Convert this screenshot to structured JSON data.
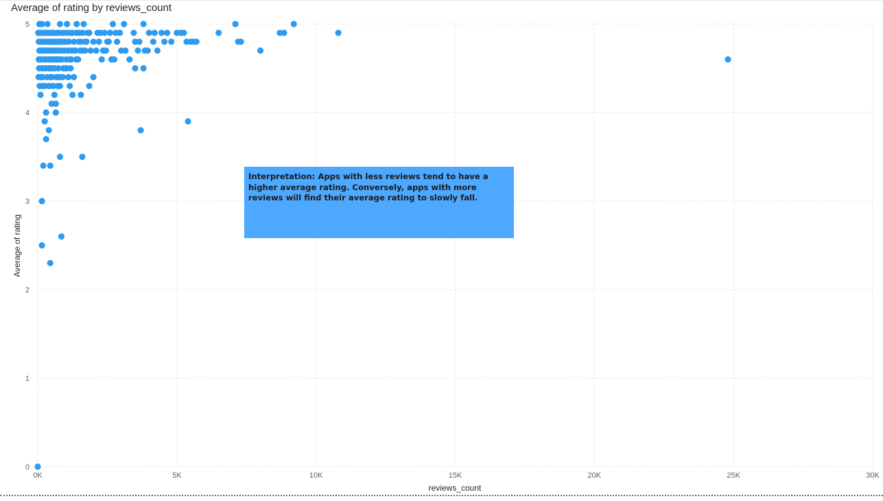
{
  "chart_data": {
    "type": "scatter",
    "title": "Average of rating by reviews_count",
    "xlabel": "reviews_count",
    "ylabel": "Average of rating",
    "xlim": [
      0,
      30000
    ],
    "ylim": [
      0,
      5
    ],
    "x_ticks": [
      "0K",
      "5K",
      "10K",
      "15K",
      "20K",
      "25K",
      "30K"
    ],
    "y_ticks": [
      "0",
      "1",
      "2",
      "3",
      "4",
      "5"
    ],
    "grid": true,
    "point_color": "#2e9bf0",
    "points": [
      [
        0,
        0
      ],
      [
        150,
        2.5
      ],
      [
        450,
        2.3
      ],
      [
        850,
        2.6
      ],
      [
        150,
        3.0
      ],
      [
        200,
        3.4
      ],
      [
        450,
        3.4
      ],
      [
        800,
        3.5
      ],
      [
        1600,
        3.5
      ],
      [
        300,
        3.7
      ],
      [
        400,
        3.8
      ],
      [
        3700,
        3.8
      ],
      [
        250,
        3.9
      ],
      [
        5400,
        3.9
      ],
      [
        300,
        4.0
      ],
      [
        650,
        4.0
      ],
      [
        1550,
        4.2
      ],
      [
        500,
        4.1
      ],
      [
        650,
        4.1
      ],
      [
        2000,
        4.4
      ],
      [
        1850,
        4.3
      ],
      [
        3800,
        4.5
      ],
      [
        3500,
        4.5
      ],
      [
        5350,
        4.8
      ],
      [
        5700,
        4.8
      ],
      [
        7300,
        4.8
      ],
      [
        8000,
        4.7
      ],
      [
        10800,
        4.9
      ],
      [
        9200,
        5.0
      ],
      [
        24800,
        4.6
      ],
      [
        7100,
        5.0
      ],
      [
        6500,
        4.9
      ],
      [
        5000,
        4.9
      ],
      [
        5250,
        4.9
      ],
      [
        4800,
        4.8
      ],
      [
        4300,
        4.7
      ],
      [
        3300,
        4.6
      ],
      [
        3600,
        4.7
      ],
      [
        3500,
        4.8
      ],
      [
        3000,
        4.7
      ],
      [
        4200,
        4.9
      ],
      [
        3800,
        5.0
      ],
      [
        3100,
        5.0
      ],
      [
        2800,
        4.9
      ],
      [
        2600,
        4.9
      ],
      [
        2400,
        4.9
      ],
      [
        2200,
        4.8
      ],
      [
        2100,
        4.7
      ],
      [
        2300,
        4.6
      ],
      [
        1900,
        4.7
      ],
      [
        1700,
        4.8
      ],
      [
        1500,
        4.9
      ],
      [
        1300,
        4.8
      ],
      [
        1100,
        4.7
      ],
      [
        1200,
        4.6
      ],
      [
        1000,
        4.5
      ],
      [
        900,
        4.4
      ],
      [
        1150,
        4.3
      ],
      [
        1300,
        4.4
      ],
      [
        800,
        4.3
      ],
      [
        600,
        4.2
      ],
      [
        700,
        4.4
      ],
      [
        500,
        4.5
      ],
      [
        400,
        4.6
      ],
      [
        300,
        4.7
      ],
      [
        200,
        4.8
      ],
      [
        100,
        4.9
      ],
      [
        150,
        5.0
      ],
      [
        350,
        5.0
      ],
      [
        550,
        4.9
      ],
      [
        750,
        4.8
      ],
      [
        950,
        4.9
      ],
      [
        1400,
        5.0
      ],
      [
        1650,
        5.0
      ],
      [
        1800,
        4.9
      ],
      [
        2000,
        4.8
      ],
      [
        1600,
        4.7
      ],
      [
        1450,
        4.6
      ],
      [
        1250,
        4.9
      ],
      [
        1050,
        5.0
      ],
      [
        850,
        4.7
      ],
      [
        650,
        4.6
      ],
      [
        450,
        4.4
      ],
      [
        250,
        4.3
      ],
      [
        100,
        4.2
      ],
      [
        50,
        4.5
      ],
      [
        60,
        4.7
      ],
      [
        80,
        4.8
      ],
      [
        120,
        4.6
      ],
      [
        180,
        4.4
      ],
      [
        220,
        4.3
      ],
      [
        260,
        4.5
      ],
      [
        320,
        4.8
      ],
      [
        380,
        4.9
      ],
      [
        420,
        4.7
      ],
      [
        480,
        4.6
      ],
      [
        540,
        4.8
      ],
      [
        600,
        4.5
      ],
      [
        680,
        4.9
      ],
      [
        720,
        4.3
      ],
      [
        780,
        4.6
      ],
      [
        820,
        4.8
      ],
      [
        880,
        4.9
      ],
      [
        920,
        4.5
      ],
      [
        980,
        4.8
      ],
      [
        1020,
        4.6
      ],
      [
        1080,
        4.9
      ],
      [
        1120,
        4.8
      ],
      [
        1180,
        4.5
      ],
      [
        1220,
        4.7
      ],
      [
        1350,
        4.7
      ],
      [
        1400,
        4.9
      ],
      [
        1550,
        4.8
      ],
      [
        2500,
        4.8
      ],
      [
        2700,
        5.0
      ],
      [
        8700,
        4.9
      ],
      [
        8850,
        4.9
      ],
      [
        7200,
        4.8
      ],
      [
        5600,
        4.8
      ],
      [
        4550,
        4.8
      ],
      [
        3850,
        4.7
      ],
      [
        4000,
        4.9
      ],
      [
        2750,
        4.6
      ],
      [
        1250,
        4.2
      ],
      [
        30,
        4.4
      ],
      [
        40,
        4.6
      ],
      [
        70,
        4.3
      ],
      [
        90,
        4.9
      ],
      [
        110,
        4.4
      ],
      [
        130,
        4.7
      ],
      [
        160,
        4.5
      ],
      [
        190,
        4.9
      ],
      [
        230,
        4.6
      ],
      [
        270,
        4.9
      ],
      [
        290,
        4.5
      ],
      [
        330,
        4.4
      ],
      [
        360,
        4.6
      ],
      [
        390,
        4.3
      ],
      [
        440,
        4.8
      ],
      [
        470,
        4.9
      ],
      [
        520,
        4.6
      ],
      [
        560,
        4.3
      ],
      [
        590,
        4.8
      ],
      [
        630,
        4.7
      ],
      [
        670,
        4.4
      ],
      [
        700,
        4.8
      ],
      [
        740,
        4.5
      ],
      [
        760,
        4.9
      ],
      [
        800,
        5.0
      ],
      [
        870,
        4.6
      ],
      [
        900,
        4.8
      ],
      [
        960,
        4.7
      ],
      [
        1000,
        4.8
      ],
      [
        1040,
        4.5
      ],
      [
        1100,
        4.4
      ],
      [
        1140,
        4.6
      ],
      [
        1200,
        4.9
      ],
      [
        1320,
        4.7
      ],
      [
        1380,
        4.6
      ],
      [
        1480,
        4.8
      ],
      [
        1520,
        4.7
      ],
      [
        1620,
        4.9
      ],
      [
        1700,
        4.7
      ],
      [
        1750,
        4.8
      ],
      [
        1850,
        4.9
      ],
      [
        2150,
        4.9
      ],
      [
        2250,
        4.9
      ],
      [
        2350,
        4.7
      ],
      [
        2450,
        4.7
      ],
      [
        2550,
        4.8
      ],
      [
        2650,
        4.6
      ],
      [
        2850,
        4.8
      ],
      [
        2950,
        4.9
      ],
      [
        3150,
        4.7
      ],
      [
        3450,
        4.9
      ],
      [
        3650,
        4.8
      ],
      [
        3950,
        4.7
      ],
      [
        4150,
        4.8
      ],
      [
        4450,
        4.9
      ],
      [
        4650,
        4.9
      ],
      [
        5150,
        4.9
      ],
      [
        5500,
        4.8
      ],
      [
        20,
        4.9
      ],
      [
        40,
        4.8
      ],
      [
        60,
        5.0
      ],
      [
        80,
        4.6
      ],
      [
        100,
        4.7
      ],
      [
        140,
        4.8
      ],
      [
        170,
        4.3
      ],
      [
        210,
        4.7
      ],
      [
        240,
        4.8
      ],
      [
        280,
        4.6
      ],
      [
        310,
        4.7
      ],
      [
        340,
        4.9
      ],
      [
        370,
        4.8
      ],
      [
        410,
        4.5
      ],
      [
        430,
        4.3
      ],
      [
        460,
        4.7
      ],
      [
        490,
        4.8
      ],
      [
        510,
        4.4
      ],
      [
        530,
        4.7
      ],
      [
        570,
        4.9
      ],
      [
        610,
        4.6
      ],
      [
        640,
        4.8
      ],
      [
        690,
        4.7
      ],
      [
        710,
        4.6
      ],
      [
        730,
        4.7
      ],
      [
        770,
        4.8
      ],
      [
        790,
        4.4
      ]
    ]
  },
  "annotation": {
    "text": "Interpretation: Apps with less reviews tend to have a higher average rating. Conversely, apps with more reviews will find their average rating to slowly fall."
  }
}
